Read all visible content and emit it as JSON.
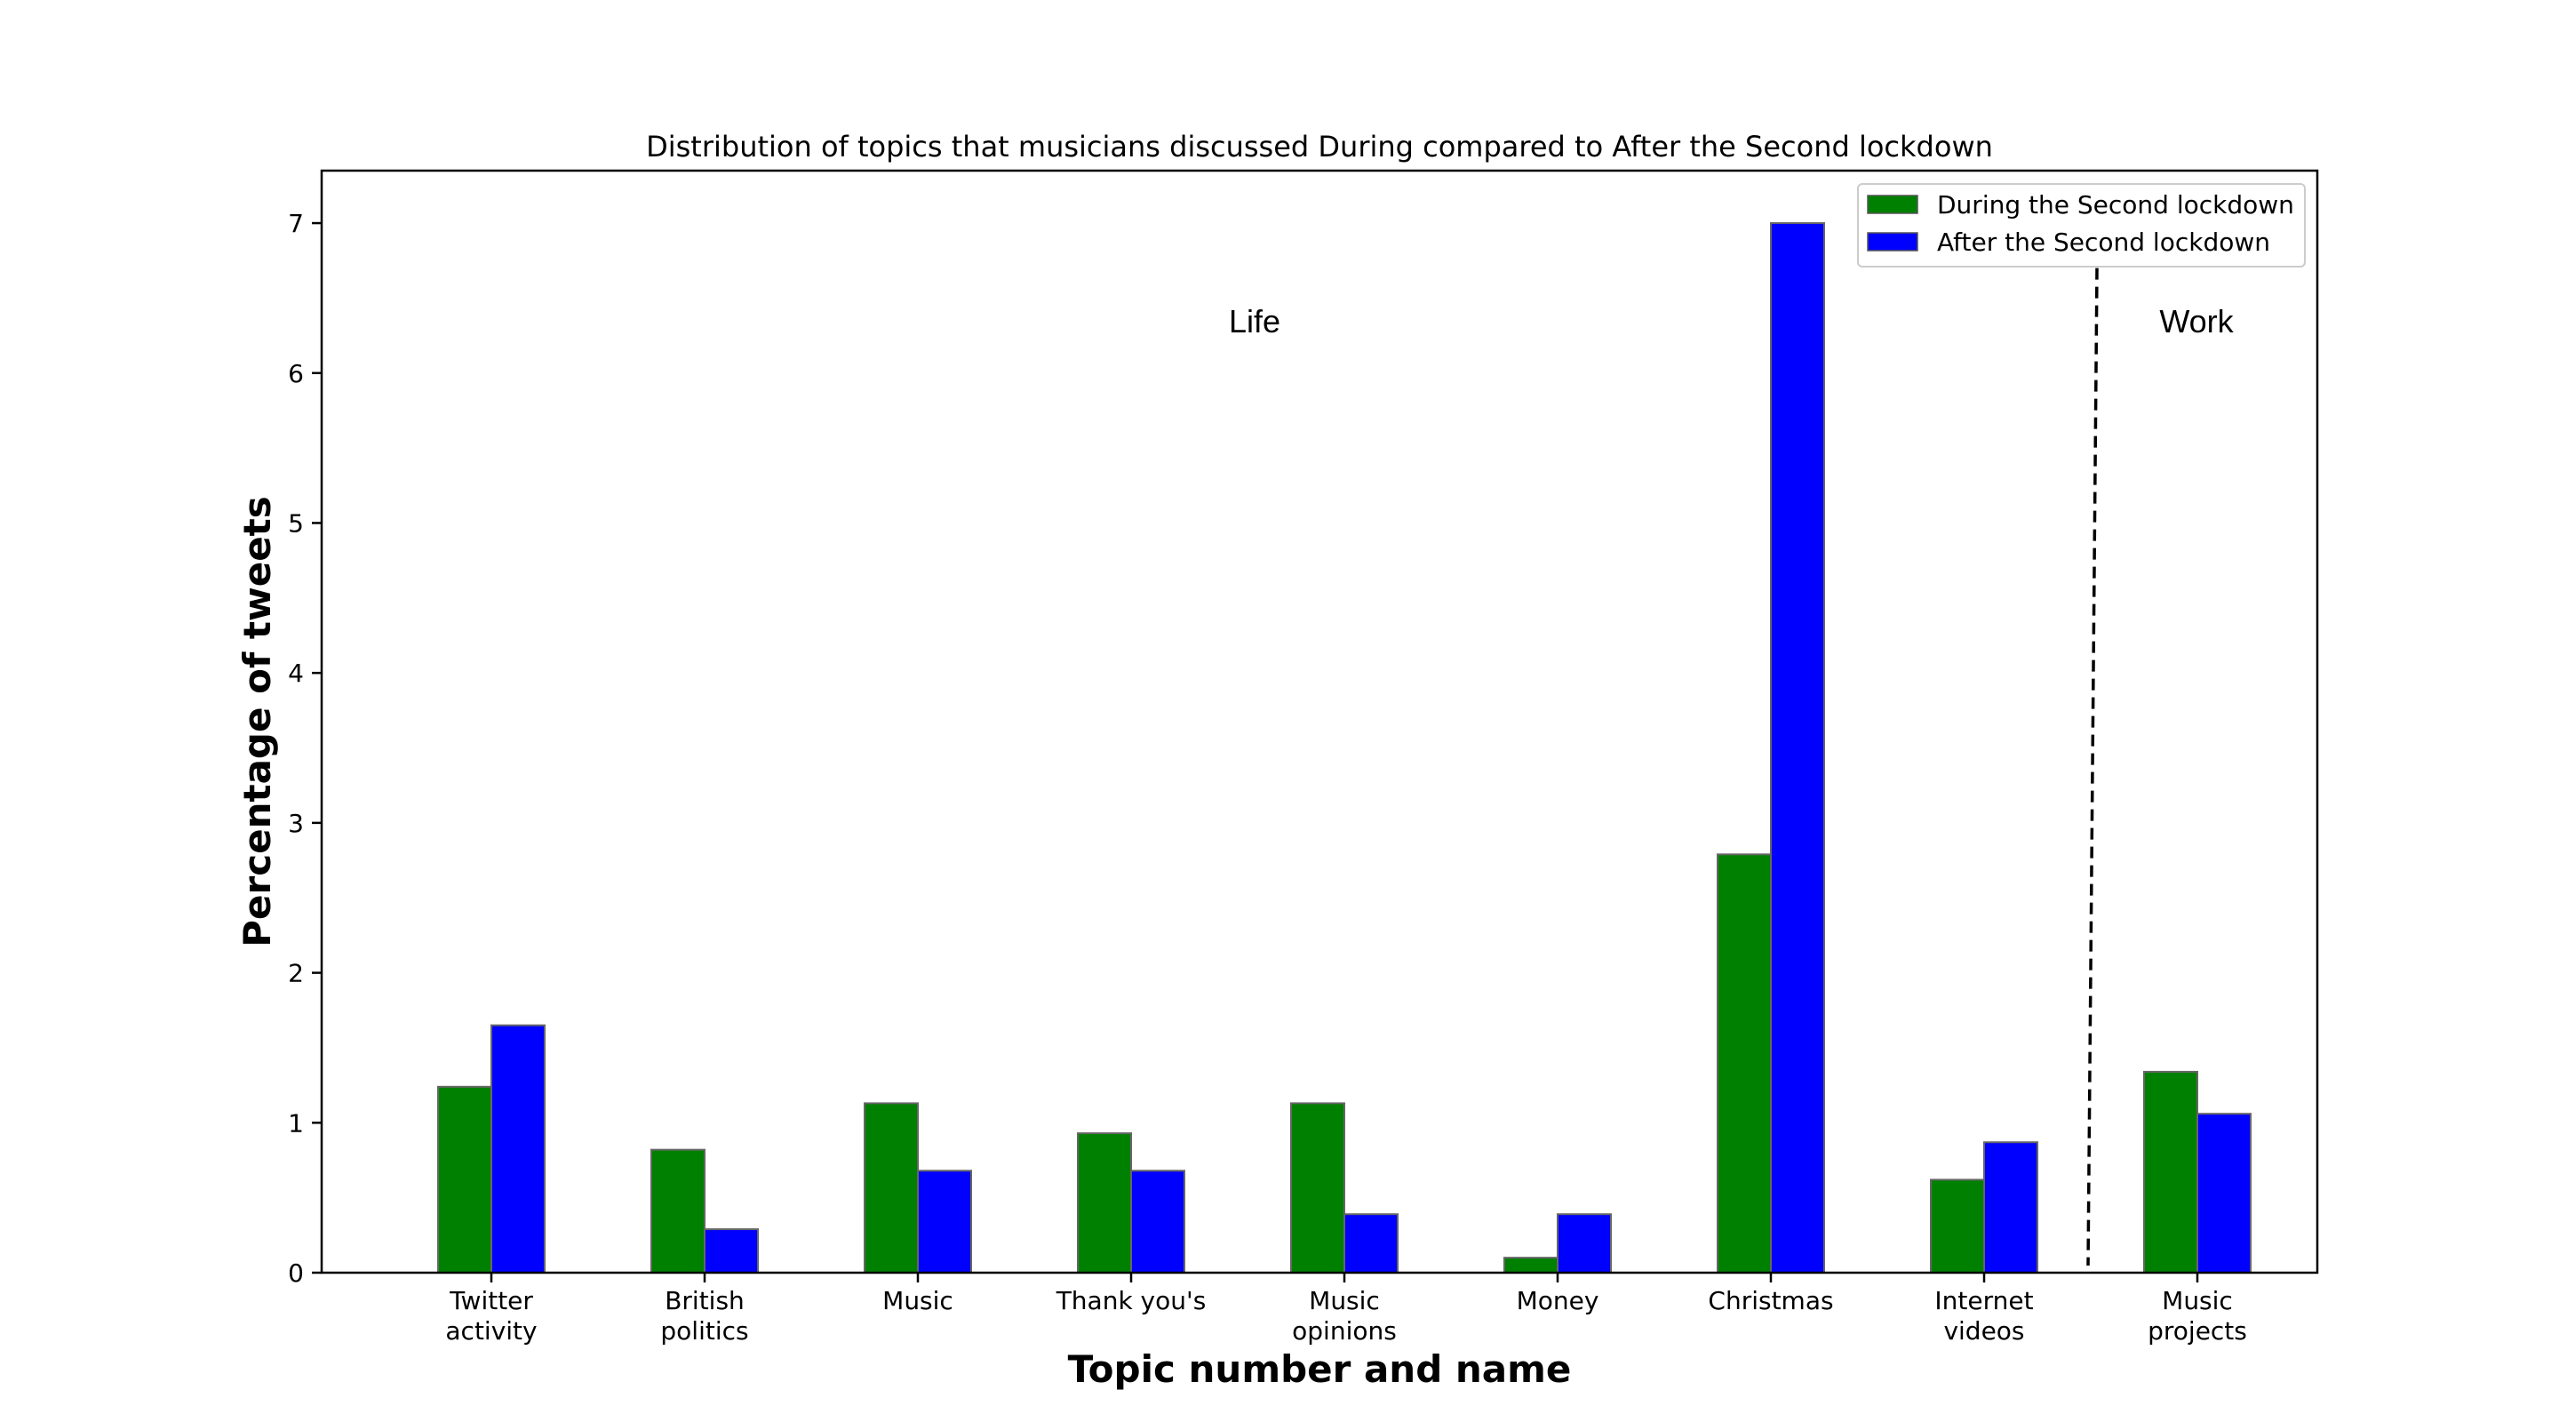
{
  "chart_data": {
    "type": "bar",
    "title": "Distribution of topics that musicians discussed During compared to After the Second lockdown",
    "xlabel": "Topic number and name",
    "ylabel": "Percentage of tweets",
    "ylim": [
      0,
      7.35
    ],
    "yticks": [
      "0",
      "1",
      "2",
      "3",
      "4",
      "5",
      "6",
      "7"
    ],
    "categories": [
      [
        "Twitter",
        "activity"
      ],
      [
        "British",
        "politics"
      ],
      [
        "Music"
      ],
      [
        "Thank you's"
      ],
      [
        "Music",
        "opinions"
      ],
      [
        "Money"
      ],
      [
        "Christmas"
      ],
      [
        "Internet",
        "videos"
      ],
      [
        "Music",
        "projects"
      ]
    ],
    "series": [
      {
        "name": "During the Second lockdown",
        "color": "#008000",
        "values": [
          1.24,
          0.82,
          1.13,
          0.93,
          1.13,
          0.1,
          2.79,
          0.62,
          1.34
        ]
      },
      {
        "name": "After the Second lockdown",
        "color": "#0000ff",
        "values": [
          1.65,
          0.29,
          0.68,
          0.68,
          0.39,
          0.39,
          7.0,
          0.87,
          1.06
        ]
      }
    ],
    "annotations": [
      "Life",
      "Work"
    ],
    "divider": "dashed vertical line between Internet videos and Music projects",
    "legend_position": "upper right",
    "grid": false
  }
}
